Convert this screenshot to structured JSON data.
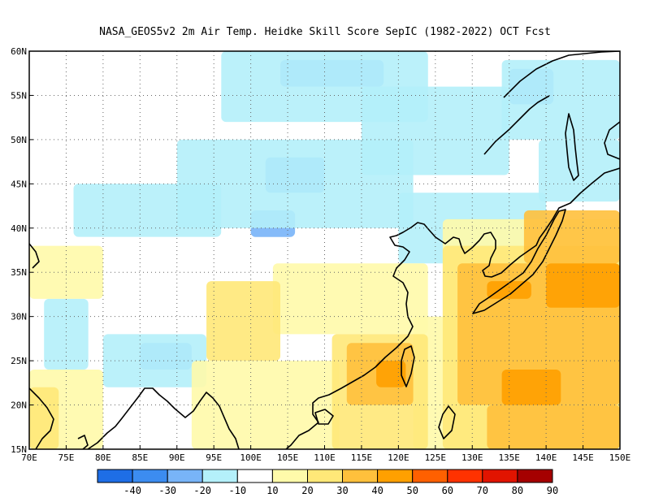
{
  "title": "NASA_GEOS5v2  2m Air Temp. Heidke Skill Score SepIC (1982-2022) OCT Fcst",
  "map": {
    "lon_range": [
      70,
      150
    ],
    "lat_range": [
      15,
      60
    ],
    "lon_ticks": [
      "70E",
      "75E",
      "80E",
      "85E",
      "90E",
      "95E",
      "100E",
      "105E",
      "110E",
      "115E",
      "120E",
      "125E",
      "130E",
      "135E",
      "140E",
      "145E",
      "150E"
    ],
    "lat_ticks": [
      "15N",
      "20N",
      "25N",
      "30N",
      "35N",
      "40N",
      "45N",
      "50N",
      "55N",
      "60N"
    ],
    "grid_lines": "dotted"
  },
  "colorbar": {
    "colors": [
      "#1e6ee6",
      "#3c8cf0",
      "#78b4f8",
      "#b4f0fa",
      "#ffffff",
      "#fffaaa",
      "#ffe878",
      "#ffc03c",
      "#ffa000",
      "#ff6000",
      "#ff3200",
      "#e11400",
      "#a50000"
    ],
    "labels": [
      "-40",
      "-30",
      "-20",
      "-10",
      "10",
      "20",
      "30",
      "40",
      "50",
      "60",
      "70",
      "80",
      "90"
    ]
  },
  "regions": [
    {
      "level": "-20",
      "color": "#78b4f8",
      "areas": [
        {
          "lon": [
            104,
            118
          ],
          "lat": [
            56,
            59
          ]
        },
        {
          "lon": [
            102,
            110
          ],
          "lat": [
            44,
            48
          ]
        },
        {
          "lon": [
            100,
            106
          ],
          "lat": [
            39,
            42
          ]
        },
        {
          "lon": [
            85,
            92
          ],
          "lat": [
            24,
            27
          ]
        },
        {
          "lon": [
            135,
            141
          ],
          "lat": [
            54,
            58
          ]
        }
      ]
    },
    {
      "level": "-10",
      "color": "#b4f0fa",
      "areas": [
        {
          "lon": [
            96,
            124
          ],
          "lat": [
            52,
            60
          ]
        },
        {
          "lon": [
            90,
            122
          ],
          "lat": [
            40,
            50
          ]
        },
        {
          "lon": [
            76,
            96
          ],
          "lat": [
            39,
            45
          ]
        },
        {
          "lon": [
            115,
            135
          ],
          "lat": [
            46,
            56
          ]
        },
        {
          "lon": [
            120,
            140
          ],
          "lat": [
            36,
            44
          ]
        },
        {
          "lon": [
            134,
            150
          ],
          "lat": [
            50,
            59
          ]
        },
        {
          "lon": [
            139,
            150
          ],
          "lat": [
            43,
            50
          ]
        },
        {
          "lon": [
            80,
            94
          ],
          "lat": [
            22,
            28
          ]
        },
        {
          "lon": [
            72,
            78
          ],
          "lat": [
            24,
            32
          ]
        }
      ]
    },
    {
      "level": "10",
      "color": "#fffaaa",
      "areas": [
        {
          "lon": [
            70,
            80
          ],
          "lat": [
            32,
            38
          ]
        },
        {
          "lon": [
            70,
            80
          ],
          "lat": [
            15,
            24
          ]
        },
        {
          "lon": [
            103,
            124
          ],
          "lat": [
            28,
            36
          ]
        },
        {
          "lon": [
            92,
            112
          ],
          "lat": [
            15,
            25
          ]
        },
        {
          "lon": [
            122,
            150
          ],
          "lat": [
            15,
            30
          ]
        },
        {
          "lon": [
            126,
            150
          ],
          "lat": [
            25,
            41
          ]
        }
      ]
    },
    {
      "level": "20",
      "color": "#ffe878",
      "areas": [
        {
          "lon": [
            94,
            104
          ],
          "lat": [
            25,
            34
          ]
        },
        {
          "lon": [
            111,
            124
          ],
          "lat": [
            15,
            28
          ]
        },
        {
          "lon": [
            70,
            74
          ],
          "lat": [
            15,
            22
          ]
        },
        {
          "lon": [
            126,
            150
          ],
          "lat": [
            15,
            38
          ]
        }
      ]
    },
    {
      "level": "30",
      "color": "#ffc03c",
      "areas": [
        {
          "lon": [
            113,
            122
          ],
          "lat": [
            20,
            27
          ]
        },
        {
          "lon": [
            128,
            150
          ],
          "lat": [
            20,
            36
          ]
        },
        {
          "lon": [
            137,
            150
          ],
          "lat": [
            36,
            42
          ]
        },
        {
          "lon": [
            132,
            150
          ],
          "lat": [
            15,
            20
          ]
        }
      ]
    },
    {
      "level": "40",
      "color": "#ffa000",
      "areas": [
        {
          "lon": [
            117,
            121
          ],
          "lat": [
            22,
            25
          ]
        },
        {
          "lon": [
            134,
            142
          ],
          "lat": [
            20,
            24
          ]
        },
        {
          "lon": [
            140,
            150
          ],
          "lat": [
            31,
            36
          ]
        },
        {
          "lon": [
            132,
            138
          ],
          "lat": [
            32,
            34
          ]
        }
      ]
    }
  ]
}
